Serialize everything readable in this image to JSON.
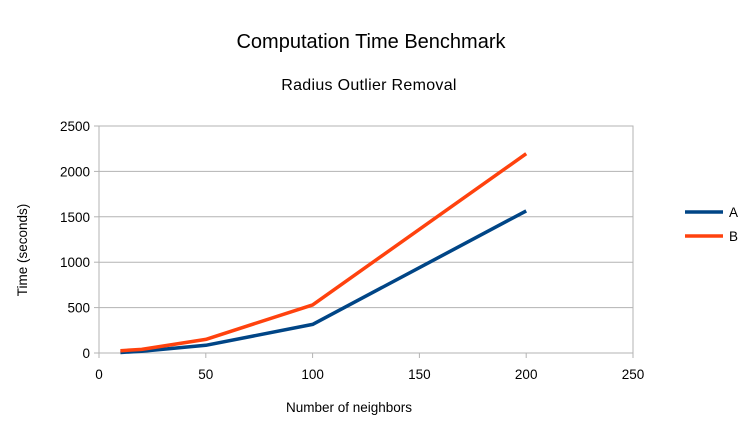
{
  "chart_data": {
    "type": "line",
    "title": "Computation Time Benchmark",
    "subtitle": "Radius Outlier Removal",
    "xlabel": "Number of neighbors",
    "ylabel": "Time (seconds)",
    "xlim": [
      0,
      250
    ],
    "ylim": [
      0,
      2500
    ],
    "xticks": [
      0,
      50,
      100,
      150,
      200,
      250
    ],
    "yticks": [
      0,
      500,
      1000,
      1500,
      2000,
      2500
    ],
    "grid": "horizontal",
    "legend_position": "right",
    "series": [
      {
        "name": "A",
        "color": "#004586",
        "x": [
          10,
          20,
          50,
          100,
          200
        ],
        "y": [
          5,
          20,
          85,
          315,
          1565
        ]
      },
      {
        "name": "B",
        "color": "#ff420e",
        "x": [
          10,
          20,
          50,
          100,
          200
        ],
        "y": [
          25,
          40,
          150,
          530,
          2195
        ]
      }
    ]
  }
}
